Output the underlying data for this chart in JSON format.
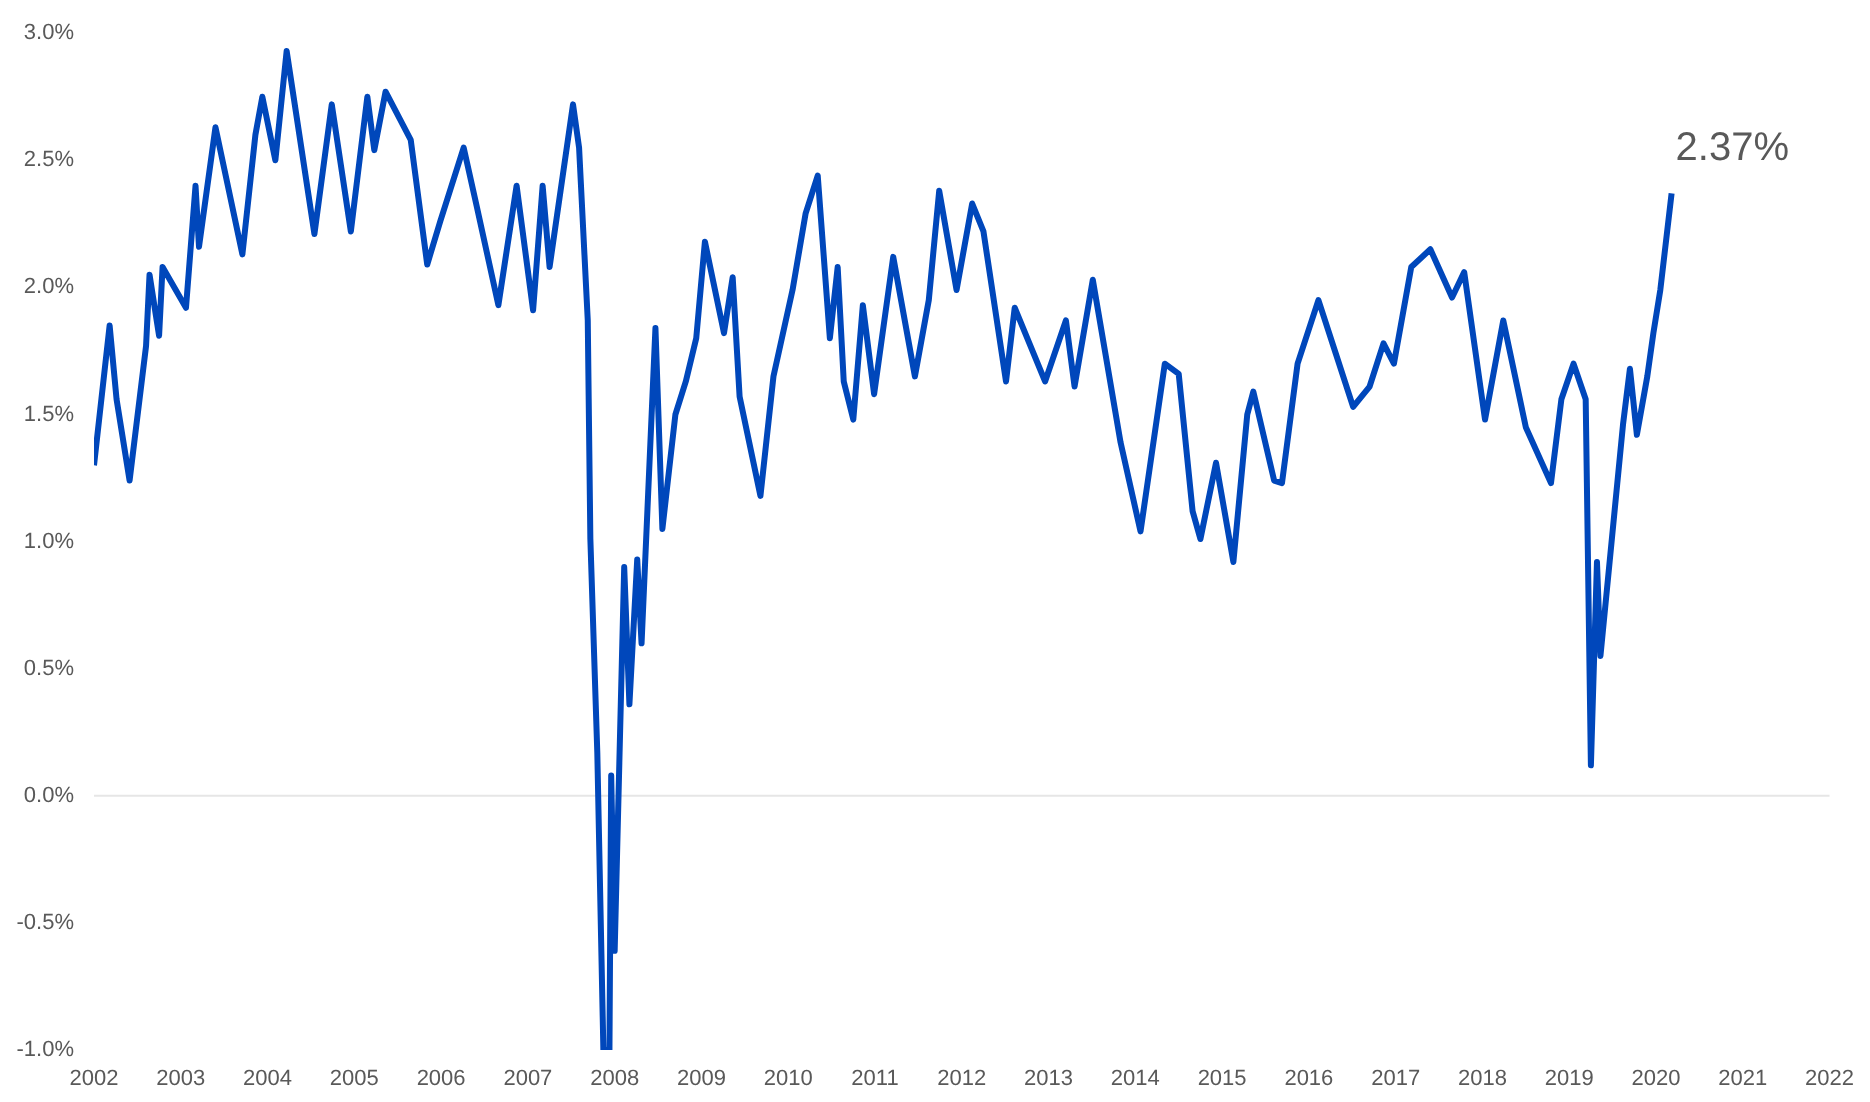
{
  "chart_data": {
    "type": "line",
    "x": [
      2002.0,
      2002.18,
      2002.26,
      2002.41,
      2002.6,
      2002.64,
      2002.75,
      2002.79,
      2003.06,
      2003.17,
      2003.21,
      2003.4,
      2003.71,
      2003.86,
      2003.94,
      2004.09,
      2004.22,
      2004.54,
      2004.74,
      2004.96,
      2005.15,
      2005.23,
      2005.36,
      2005.65,
      2005.84,
      2005.99,
      2006.26,
      2006.41,
      2006.66,
      2006.87,
      2007.06,
      2007.17,
      2007.25,
      2007.52,
      2007.59,
      2007.69,
      2007.72,
      2007.8,
      2007.87,
      2007.94,
      2007.96,
      2008.0,
      2008.11,
      2008.17,
      2008.26,
      2008.31,
      2008.47,
      2008.55,
      2008.7,
      2008.82,
      2008.94,
      2009.04,
      2009.26,
      2009.36,
      2009.44,
      2009.68,
      2009.83,
      2010.05,
      2010.2,
      2010.34,
      2010.48,
      2010.57,
      2010.64,
      2010.75,
      2010.86,
      2010.99,
      2011.21,
      2011.46,
      2011.62,
      2011.74,
      2011.94,
      2012.12,
      2012.25,
      2012.51,
      2012.61,
      2012.96,
      2013.2,
      2013.3,
      2013.51,
      2013.83,
      2014.06,
      2014.34,
      2014.5,
      2014.66,
      2014.75,
      2014.93,
      2015.13,
      2015.29,
      2015.36,
      2015.6,
      2015.69,
      2015.87,
      2016.11,
      2016.31,
      2016.51,
      2016.7,
      2016.86,
      2016.98,
      2017.18,
      2017.4,
      2017.65,
      2017.79,
      2018.03,
      2018.24,
      2018.5,
      2018.79,
      2018.91,
      2019.05,
      2019.19,
      2019.25,
      2019.32,
      2019.36,
      2019.62,
      2019.7,
      2019.78,
      2019.9,
      2019.97,
      2020.05,
      2020.18
    ],
    "series": [
      {
        "color": "#0047bb",
        "values": [
          1.3,
          1.85,
          1.56,
          1.24,
          1.77,
          2.05,
          1.81,
          2.08,
          1.92,
          2.4,
          2.16,
          2.63,
          2.13,
          2.6,
          2.75,
          2.5,
          2.93,
          2.21,
          2.72,
          2.22,
          2.75,
          2.54,
          2.77,
          2.58,
          2.09,
          2.26,
          2.55,
          2.32,
          1.93,
          2.4,
          1.91,
          2.4,
          2.08,
          2.72,
          2.55,
          1.87,
          1.01,
          0.17,
          -1.0,
          -1.0,
          0.08,
          -0.61,
          0.9,
          0.36,
          0.93,
          0.6,
          1.84,
          1.05,
          1.5,
          1.63,
          1.8,
          2.18,
          1.82,
          2.04,
          1.57,
          1.18,
          1.65,
          1.99,
          2.29,
          2.44,
          1.8,
          2.08,
          1.63,
          1.48,
          1.93,
          1.58,
          2.12,
          1.65,
          1.95,
          2.38,
          1.99,
          2.33,
          2.22,
          1.63,
          1.92,
          1.63,
          1.87,
          1.61,
          2.03,
          1.39,
          1.04,
          1.7,
          1.66,
          1.12,
          1.01,
          1.31,
          0.92,
          1.5,
          1.59,
          1.24,
          1.23,
          1.7,
          1.95,
          1.74,
          1.53,
          1.61,
          1.78,
          1.7,
          2.08,
          2.15,
          1.96,
          2.06,
          1.48,
          1.87,
          1.45,
          1.23,
          1.56,
          1.7,
          1.56,
          0.12,
          0.92,
          0.55,
          1.46,
          1.68,
          1.42,
          1.65,
          1.82,
          1.99,
          2.37
        ]
      }
    ],
    "xlim": [
      2002,
      2022
    ],
    "xticks": [
      2002,
      2003,
      2004,
      2005,
      2006,
      2007,
      2008,
      2009,
      2010,
      2011,
      2012,
      2013,
      2014,
      2015,
      2016,
      2017,
      2018,
      2019,
      2020,
      2021,
      2022
    ],
    "ylim": [
      -1.0,
      3.0
    ],
    "yticks": [
      {
        "value": -1.0,
        "label": "-1.0%"
      },
      {
        "value": -0.5,
        "label": "-0.5%"
      },
      {
        "value": 0,
        "label": "0.0%"
      },
      {
        "value": 0.5,
        "label": "0.5%"
      },
      {
        "value": 1.0,
        "label": "1.0%"
      },
      {
        "value": 1.5,
        "label": "1.5%"
      },
      {
        "value": 2.0,
        "label": "2.0%"
      },
      {
        "value": 2.5,
        "label": "2.5%"
      },
      {
        "value": 3.0,
        "label": "3.0%"
      }
    ],
    "ref_lines": [
      {
        "axis": "y",
        "value": 0,
        "color": "#e6e6e6"
      }
    ],
    "annotations": [
      {
        "text": "2.37%",
        "x": 2020.18,
        "y": 2.37
      }
    ],
    "grid": false,
    "legend": false,
    "marker": "none",
    "line_style": "solid"
  }
}
